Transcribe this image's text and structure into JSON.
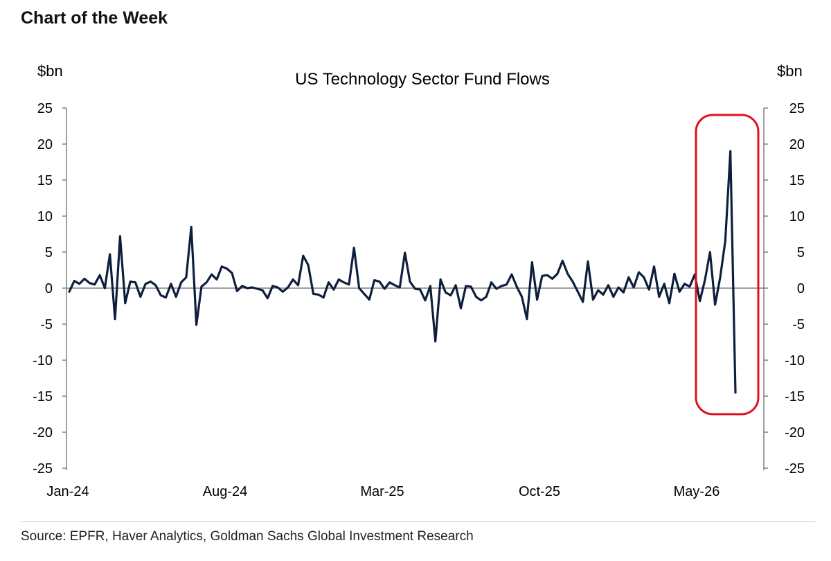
{
  "page": {
    "heading": "Chart of the Week",
    "source": "Source: EPFR, Haver Analytics, Goldman Sachs Global Investment Research"
  },
  "chart_data": {
    "type": "line",
    "title": "US Technology Sector Fund Flows",
    "y_unit_left": "$bn",
    "y_unit_right": "$bn",
    "xlabel": "",
    "ylabel": "",
    "ylim": [
      -25,
      25
    ],
    "y_ticks": [
      25,
      20,
      15,
      10,
      5,
      0,
      -5,
      -10,
      -15,
      -20,
      -25
    ],
    "x_tick_labels": [
      "Jan-24",
      "Aug-24",
      "Mar-25",
      "Oct-25",
      "May-26"
    ],
    "grid": false,
    "legend": "none",
    "highlight": {
      "shape": "rounded-rectangle",
      "color": "#e0101c",
      "covers": "most recent weeks"
    },
    "series": [
      {
        "color": "#0e1f3d",
        "values": [
          -0.5,
          1.0,
          0.6,
          1.3,
          0.7,
          0.5,
          1.8,
          0.0,
          4.7,
          -4.3,
          7.2,
          -2.1,
          0.9,
          0.8,
          -1.2,
          0.6,
          0.9,
          0.4,
          -1.0,
          -1.3,
          0.6,
          -1.2,
          0.8,
          1.5,
          8.5,
          -5.1,
          0.2,
          0.8,
          1.9,
          1.2,
          3.0,
          2.7,
          2.1,
          -0.4,
          0.3,
          0.0,
          0.1,
          -0.1,
          -0.3,
          -1.4,
          0.3,
          0.1,
          -0.5,
          0.1,
          1.2,
          0.4,
          4.5,
          3.2,
          -0.8,
          -0.9,
          -1.3,
          0.8,
          -0.2,
          1.2,
          0.8,
          0.5,
          5.6,
          0.0,
          -0.8,
          -1.6,
          1.1,
          0.9,
          -0.1,
          0.8,
          0.4,
          0.1,
          4.9,
          0.9,
          -0.1,
          -0.2,
          -1.7,
          0.3,
          -7.4,
          1.2,
          -0.6,
          -1.0,
          0.4,
          -2.8,
          0.3,
          0.2,
          -1.2,
          -1.7,
          -1.2,
          0.8,
          -0.1,
          0.3,
          0.5,
          1.9,
          0.2,
          -1.2,
          -4.3,
          3.6,
          -1.6,
          1.7,
          1.8,
          1.3,
          2.0,
          3.8,
          2.0,
          0.9,
          -0.5,
          -1.9,
          3.7,
          -1.6,
          -0.3,
          -0.9,
          0.4,
          -1.2,
          0.1,
          -0.6,
          1.5,
          0.1,
          2.2,
          1.5,
          -0.2,
          3.0,
          -1.2,
          0.6,
          -2.1,
          2.0,
          -0.5,
          0.6,
          0.2,
          1.9,
          -1.8,
          1.1,
          5.0,
          -2.3,
          1.5,
          6.5,
          19.0,
          -14.5
        ]
      }
    ]
  }
}
